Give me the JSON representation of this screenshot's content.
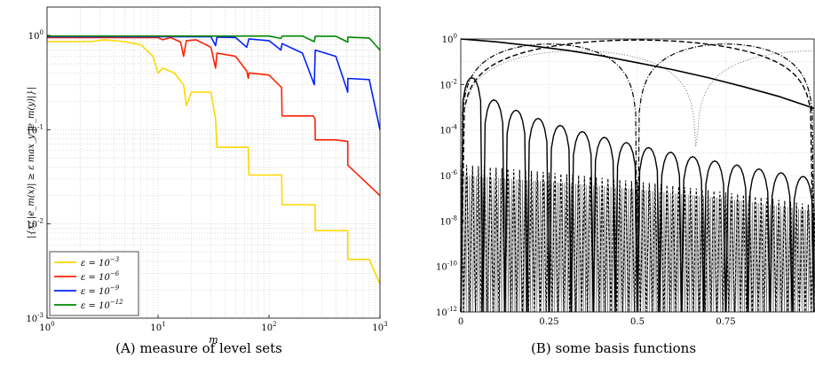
{
  "chart_data": [
    {
      "type": "line",
      "panel_label": "(A)",
      "caption": "measure of level sets",
      "xlabel": "m",
      "ylabel": "|{x; |e_m(x)| ≥ ε max_y |e_m(y)|}|",
      "xscale": "log",
      "yscale": "log",
      "xlim": [
        1,
        1000
      ],
      "ylim": [
        0.001,
        2
      ],
      "grid": true,
      "legend_position": "bottom-left",
      "x_ticks": [
        {
          "base": "10",
          "exp": "0"
        },
        {
          "base": "10",
          "exp": "1"
        },
        {
          "base": "10",
          "exp": "2"
        },
        {
          "base": "10",
          "exp": "3"
        }
      ],
      "y_ticks": [
        {
          "base": "10",
          "exp": "-3"
        },
        {
          "base": "10",
          "exp": "-2"
        },
        {
          "base": "10",
          "exp": "-1"
        },
        {
          "base": "10",
          "exp": "0"
        }
      ],
      "series": [
        {
          "name": "ε = 10^-3",
          "label_base": "ε = 10",
          "label_exp": "−3",
          "color": "#ffd700",
          "x": [
            1,
            2.5,
            3.3,
            5,
            7,
            9,
            10,
            11,
            14,
            17,
            18,
            20,
            30,
            33,
            34,
            60,
            65,
            66,
            100,
            130,
            131,
            200,
            260,
            261,
            400,
            512,
            513,
            800,
            1000
          ],
          "y": [
            0.86,
            0.86,
            0.9,
            0.86,
            0.8,
            0.6,
            0.4,
            0.45,
            0.4,
            0.3,
            0.18,
            0.25,
            0.25,
            0.13,
            0.065,
            0.065,
            0.065,
            0.033,
            0.033,
            0.033,
            0.016,
            0.016,
            0.016,
            0.0085,
            0.0085,
            0.0085,
            0.0042,
            0.0042,
            0.0023
          ]
        },
        {
          "name": "ε = 10^-6",
          "label_base": "ε = 10",
          "label_exp": "−6",
          "color": "#ff2200",
          "x": [
            1,
            10,
            11,
            13,
            16,
            17,
            18,
            22,
            30,
            33,
            34,
            50,
            63,
            65,
            66,
            100,
            130,
            131,
            200,
            250,
            260,
            261,
            400,
            512,
            513,
            1000
          ],
          "y": [
            0.95,
            0.95,
            0.9,
            0.95,
            0.85,
            0.6,
            0.88,
            0.9,
            0.75,
            0.45,
            0.65,
            0.6,
            0.42,
            0.35,
            0.4,
            0.38,
            0.28,
            0.14,
            0.14,
            0.14,
            0.13,
            0.078,
            0.078,
            0.075,
            0.042,
            0.02
          ]
        },
        {
          "name": "ε = 10^-9",
          "label_base": "ε = 10",
          "label_exp": "−9",
          "color": "#0022ff",
          "x": [
            1,
            30,
            33,
            34,
            50,
            63,
            66,
            100,
            128,
            131,
            200,
            256,
            261,
            400,
            512,
            513,
            800,
            1000
          ],
          "y": [
            0.97,
            0.97,
            0.78,
            0.96,
            0.95,
            0.75,
            0.92,
            0.88,
            0.7,
            0.82,
            0.65,
            0.3,
            0.7,
            0.6,
            0.25,
            0.35,
            0.34,
            0.1
          ]
        },
        {
          "name": "ε = 10^-12",
          "label_base": "ε = 10",
          "label_exp": "−12",
          "color": "#008800",
          "x": [
            1,
            100,
            128,
            131,
            200,
            256,
            261,
            400,
            512,
            513,
            800,
            1000
          ],
          "y": [
            0.985,
            0.985,
            0.93,
            0.985,
            0.985,
            0.86,
            0.98,
            0.98,
            0.85,
            0.96,
            0.94,
            0.7
          ]
        }
      ]
    },
    {
      "type": "line",
      "panel_label": "(B)",
      "caption": "some basis functions",
      "xscale": "linear",
      "yscale": "log",
      "xlim": [
        0,
        1
      ],
      "ylim": [
        1e-12,
        1
      ],
      "grid": true,
      "x_ticks": [
        "0",
        "0.25",
        "0.5",
        "0.75"
      ],
      "y_ticks": [
        {
          "base": "10",
          "exp": "0"
        },
        {
          "base": "10",
          "exp": "-2"
        },
        {
          "base": "10",
          "exp": "-4"
        },
        {
          "base": "10",
          "exp": "-6"
        },
        {
          "base": "10",
          "exp": "-8"
        },
        {
          "base": "10",
          "exp": "-10"
        },
        {
          "base": "10",
          "exp": "-12"
        }
      ],
      "series": [
        {
          "style": "solid",
          "color": "#000000",
          "x": [
            0,
            0.1,
            0.2,
            0.3,
            0.4,
            0.5,
            0.6,
            0.7,
            0.8,
            0.9,
            1.0
          ],
          "y": [
            1,
            0.75,
            0.5,
            0.32,
            0.18,
            0.09,
            0.045,
            0.02,
            0.008,
            0.003,
            0.0009
          ]
        }
      ]
    }
  ]
}
